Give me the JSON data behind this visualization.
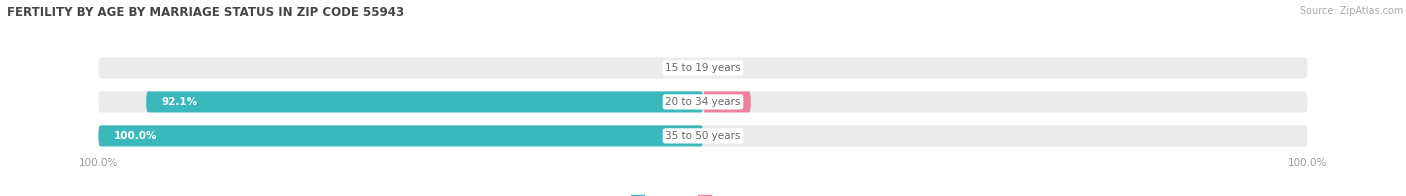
{
  "title": "FERTILITY BY AGE BY MARRIAGE STATUS IN ZIP CODE 55943",
  "source": "Source: ZipAtlas.com",
  "categories": [
    "15 to 19 years",
    "20 to 34 years",
    "35 to 50 years"
  ],
  "married_pct": [
    0.0,
    92.1,
    100.0
  ],
  "unmarried_pct": [
    0.0,
    7.9,
    0.0
  ],
  "married_color": "#3ab8bb",
  "unmarried_color": "#f080a0",
  "bar_bg_color": "#ebebeb",
  "title_color": "#444444",
  "source_color": "#aaaaaa",
  "label_color_white": "#ffffff",
  "label_color_gray": "#999999",
  "axis_label_color": "#999999",
  "fig_bg_color": "#ffffff",
  "category_label_color": "#666666"
}
